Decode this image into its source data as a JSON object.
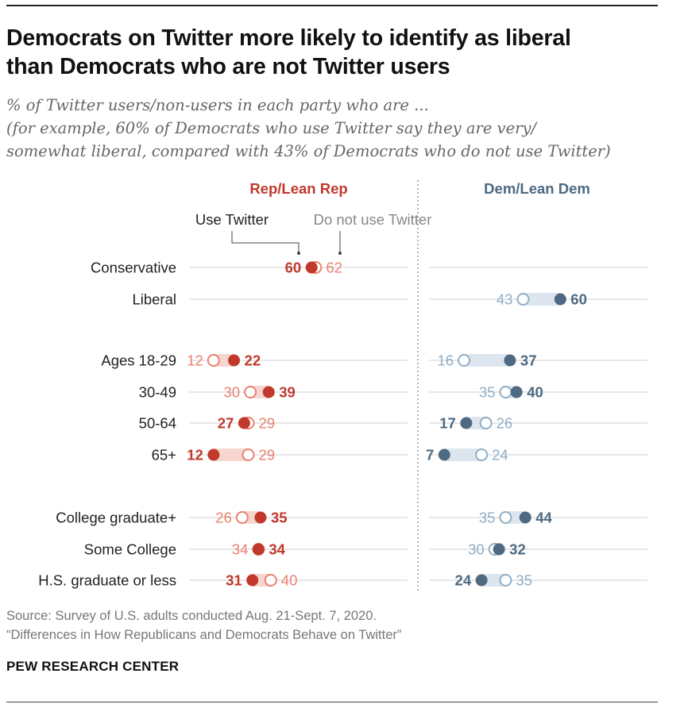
{
  "title_lines": [
    "Democrats on Twitter more likely to identify as liberal",
    "than Democrats who are not Twitter users"
  ],
  "subtitle_lines": [
    "% of Twitter users/non-users in each party who are ...",
    "(for example, 60% of Democrats who use Twitter say they are very/",
    "somewhat liberal, compared with 43% of Democrats who do not use Twitter)"
  ],
  "source_lines": [
    "Source: Survey of U.S. adults conducted Aug. 21-Sept. 7, 2020.",
    "“Differences in How Republicans and Democrats Behave on Twitter”"
  ],
  "brand": "PEW RESEARCH CENTER",
  "colors": {
    "rep_dark": "#c0392b",
    "rep_light": "#e8816f",
    "rep_band": "#f6d6cf",
    "dem_dark": "#4d6a82",
    "dem_light": "#8eaec6",
    "dem_band": "#dde6ee",
    "grid": "#cfcfcf"
  },
  "chart_data": {
    "type": "dot",
    "panels": [
      {
        "name": "Rep/Lean Rep",
        "color_key": "rep"
      },
      {
        "name": "Dem/Lean Dem",
        "color_key": "dem"
      }
    ],
    "legend": {
      "use": "Use Twitter",
      "not_use": "Do not use Twitter"
    },
    "categories": [
      "Conservative",
      "Liberal",
      "Ages 18-29",
      "30-49",
      "50-64",
      "65+",
      "College graduate+",
      "Some College",
      "H.S. graduate or less"
    ],
    "groups": [
      [
        0,
        1
      ],
      [
        2,
        3,
        4,
        5
      ],
      [
        6,
        7,
        8
      ]
    ],
    "series": [
      {
        "name": "Use Twitter",
        "rep": [
          60,
          null,
          22,
          39,
          27,
          12,
          35,
          34,
          31
        ],
        "dem": [
          null,
          60,
          37,
          40,
          17,
          7,
          44,
          32,
          24
        ]
      },
      {
        "name": "Do not use Twitter",
        "rep": [
          62,
          null,
          12,
          30,
          29,
          29,
          26,
          34,
          40
        ],
        "dem": [
          null,
          43,
          16,
          35,
          26,
          24,
          35,
          30,
          35
        ]
      }
    ]
  }
}
